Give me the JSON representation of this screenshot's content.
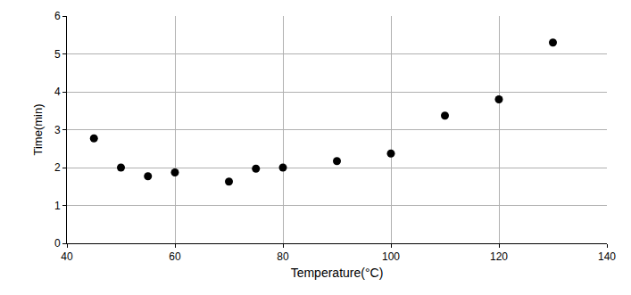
{
  "chart_data": {
    "type": "scatter",
    "x_label": "Temperature(°C)",
    "y_label": "Time(min)",
    "x": [
      45,
      50,
      55,
      60,
      70,
      75,
      80,
      90,
      100,
      110,
      120,
      130
    ],
    "values": [
      2.77,
      2.0,
      1.77,
      1.87,
      1.63,
      1.97,
      2.0,
      2.17,
      2.37,
      3.37,
      3.8,
      5.3
    ],
    "color": "#000000",
    "marker": "circle",
    "xlim": [
      40,
      140
    ],
    "xticks": [
      40,
      60,
      80,
      100,
      120,
      140
    ],
    "ylim": [
      0,
      6
    ],
    "yticks": [
      0,
      1,
      2,
      3,
      4,
      5,
      6
    ],
    "grid": true
  }
}
